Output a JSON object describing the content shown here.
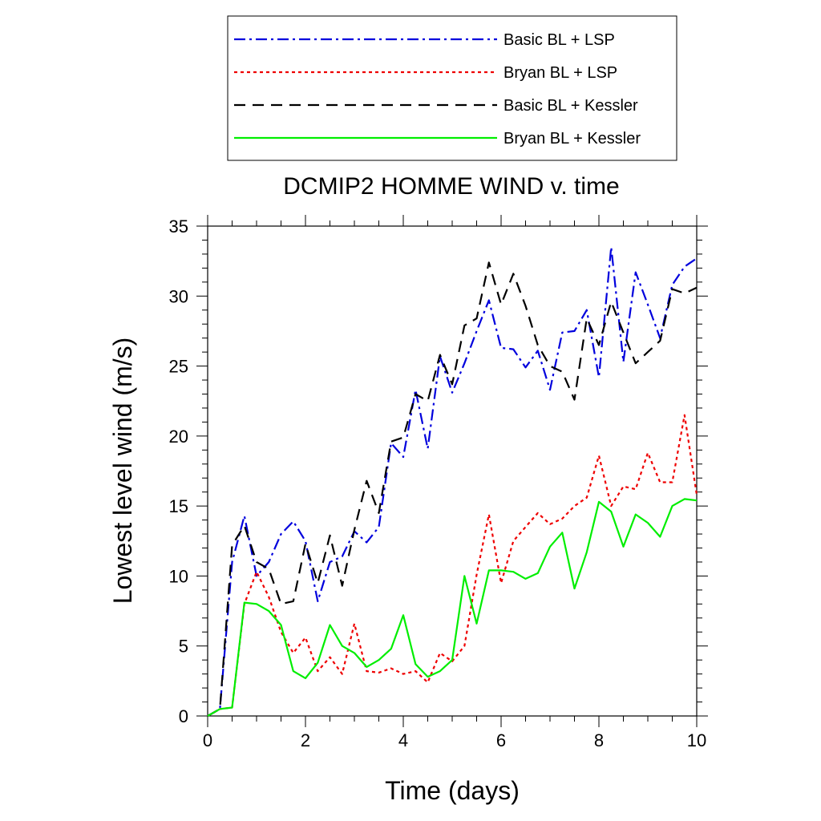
{
  "chart_data": {
    "type": "line",
    "title": "DCMIP2 HOMME WIND v. time",
    "xlabel": "Time (days)",
    "ylabel": "Lowest level wind (m/s)",
    "xlim": [
      0,
      10
    ],
    "ylim": [
      0,
      35
    ],
    "xticks": [
      "0",
      "2",
      "4",
      "6",
      "8",
      "10"
    ],
    "yticks": [
      "0",
      "5",
      "10",
      "15",
      "20",
      "25",
      "30",
      "35"
    ],
    "grid": false,
    "legend_position": "top",
    "x": [
      0,
      0.25,
      0.5,
      0.75,
      1.0,
      1.25,
      1.5,
      1.75,
      2.0,
      2.25,
      2.5,
      2.75,
      3.0,
      3.25,
      3.5,
      3.75,
      4.0,
      4.25,
      4.5,
      4.75,
      5.0,
      5.25,
      5.5,
      5.75,
      6.0,
      6.25,
      6.5,
      6.75,
      7.0,
      7.25,
      7.5,
      7.75,
      8.0,
      8.25,
      8.5,
      8.75,
      9.0,
      9.25,
      9.5,
      9.75,
      10.0
    ],
    "series": [
      {
        "name": "Basic BL + LSP",
        "color": "#0000dd",
        "dash": "dashdot",
        "values": [
          0,
          0.5,
          11.0,
          14.3,
          10.0,
          11.0,
          13.0,
          13.9,
          12.5,
          8.2,
          11.0,
          11.4,
          13.2,
          12.4,
          13.5,
          19.5,
          18.5,
          23.3,
          19.1,
          25.7,
          23.1,
          25.2,
          27.5,
          29.7,
          26.3,
          26.2,
          24.9,
          26.1,
          23.3,
          27.4,
          27.5,
          29.0,
          24.2,
          33.5,
          25.3,
          31.7,
          29.4,
          27.0,
          30.8,
          32.1,
          32.7
        ]
      },
      {
        "name": "Bryan BL + LSP",
        "color": "#ee0000",
        "dash": "dotted",
        "values": [
          0,
          0.5,
          0.6,
          8.0,
          10.3,
          8.5,
          6.0,
          4.5,
          5.6,
          3.2,
          4.2,
          3.0,
          6.6,
          3.2,
          3.1,
          3.4,
          3.0,
          3.2,
          2.4,
          4.5,
          3.9,
          5.0,
          10.1,
          14.4,
          9.5,
          12.5,
          13.5,
          14.5,
          13.7,
          14.1,
          15.0,
          15.6,
          18.6,
          15.0,
          16.4,
          16.2,
          18.8,
          16.7,
          16.7,
          21.5,
          15.8
        ]
      },
      {
        "name": "Basic BL + Kessler",
        "color": "#000000",
        "dash": "dashed",
        "values": [
          0,
          0.5,
          12.2,
          13.6,
          11.0,
          10.5,
          8.0,
          8.2,
          12.3,
          9.5,
          12.9,
          9.3,
          13.3,
          16.8,
          14.5,
          19.6,
          19.9,
          23.0,
          22.5,
          25.8,
          23.7,
          27.9,
          28.4,
          32.4,
          29.4,
          31.6,
          29.3,
          26.5,
          25.0,
          24.6,
          22.6,
          28.4,
          26.5,
          29.6,
          27.4,
          25.2,
          26.0,
          26.8,
          30.5,
          30.2,
          30.6
        ]
      },
      {
        "name": "Bryan BL + Kessler",
        "color": "#00ee00",
        "dash": "solid",
        "values": [
          0,
          0.5,
          0.6,
          8.1,
          8.0,
          7.5,
          6.5,
          3.2,
          2.7,
          3.8,
          6.5,
          5.0,
          4.5,
          3.5,
          4.0,
          4.8,
          7.2,
          3.7,
          2.8,
          3.2,
          4.0,
          10.0,
          6.6,
          10.4,
          10.4,
          10.3,
          9.8,
          10.2,
          12.1,
          13.1,
          9.1,
          11.7,
          15.3,
          14.6,
          12.1,
          14.4,
          13.8,
          12.8,
          15.0,
          15.5,
          15.4
        ]
      }
    ]
  }
}
